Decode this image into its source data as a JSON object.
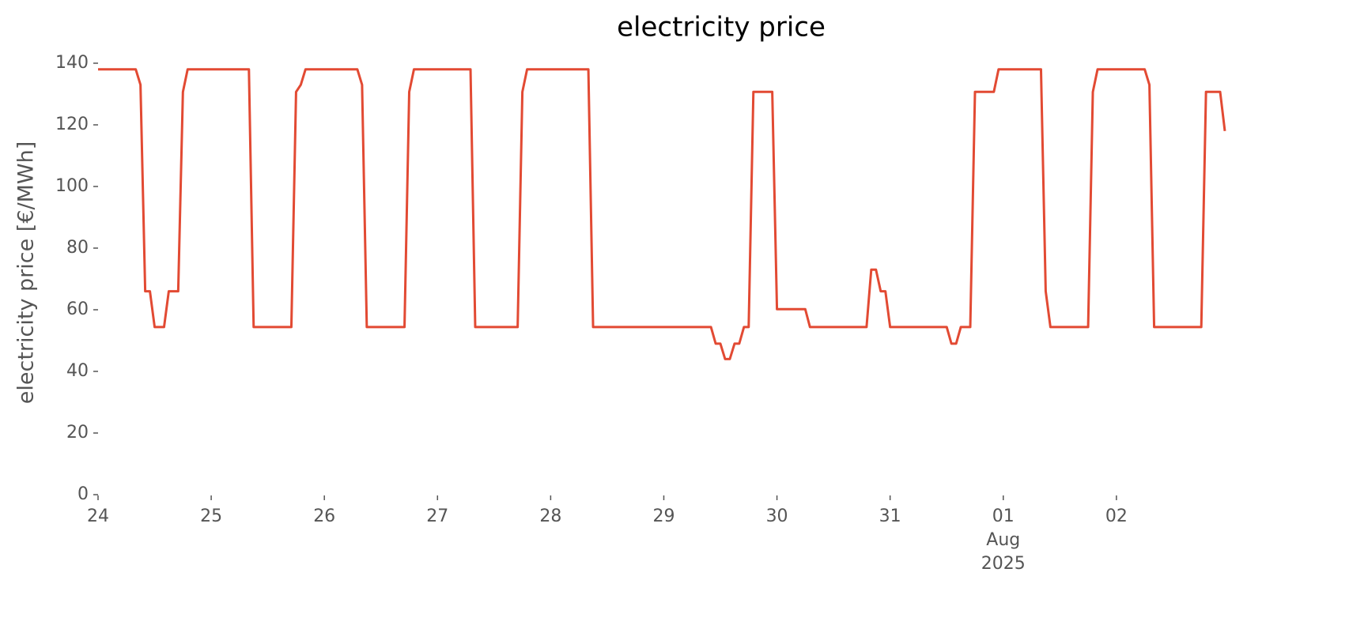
{
  "chart_data": {
    "type": "line",
    "title": "electricity price",
    "ylabel": "electricity price [€/MWh]",
    "x": [
      "2025-07-24T00:00",
      "2025-07-24T08:00",
      "2025-07-24T09:00",
      "2025-07-24T10:00",
      "2025-07-24T11:00",
      "2025-07-24T12:00",
      "2025-07-24T14:00",
      "2025-07-24T15:00",
      "2025-07-24T17:00",
      "2025-07-24T18:00",
      "2025-07-24T19:00",
      "2025-07-25T08:00",
      "2025-07-25T09:00",
      "2025-07-25T17:00",
      "2025-07-25T18:00",
      "2025-07-25T19:00",
      "2025-07-25T20:00",
      "2025-07-26T07:00",
      "2025-07-26T08:00",
      "2025-07-26T09:00",
      "2025-07-26T17:00",
      "2025-07-26T18:00",
      "2025-07-26T19:00",
      "2025-07-27T07:00",
      "2025-07-27T08:00",
      "2025-07-27T17:00",
      "2025-07-27T18:00",
      "2025-07-27T19:00",
      "2025-07-28T08:00",
      "2025-07-28T09:00",
      "2025-07-29T10:00",
      "2025-07-29T11:00",
      "2025-07-29T12:00",
      "2025-07-29T13:00",
      "2025-07-29T14:00",
      "2025-07-29T15:00",
      "2025-07-29T16:00",
      "2025-07-29T17:00",
      "2025-07-29T18:00",
      "2025-07-29T19:00",
      "2025-07-29T23:00",
      "2025-07-30T00:00",
      "2025-07-30T06:00",
      "2025-07-30T07:00",
      "2025-07-30T19:00",
      "2025-07-30T20:00",
      "2025-07-30T21:00",
      "2025-07-30T22:00",
      "2025-07-30T23:00",
      "2025-07-31T00:00",
      "2025-07-31T12:00",
      "2025-07-31T13:00",
      "2025-07-31T14:00",
      "2025-07-31T15:00",
      "2025-07-31T17:00",
      "2025-07-31T18:00",
      "2025-07-31T22:00",
      "2025-07-31T23:00",
      "2025-08-01T08:00",
      "2025-08-01T09:00",
      "2025-08-01T10:00",
      "2025-08-01T18:00",
      "2025-08-01T19:00",
      "2025-08-01T20:00",
      "2025-08-02T06:00",
      "2025-08-02T07:00",
      "2025-08-02T08:00",
      "2025-08-02T18:00",
      "2025-08-02T19:00",
      "2025-08-02T22:00",
      "2025-08-02T23:00"
    ],
    "series": [
      {
        "name": "electricity price",
        "color": "#e24a33",
        "values": [
          138,
          138,
          133,
          66,
          66,
          54.4,
          54.4,
          66,
          66,
          130.7,
          138,
          138,
          54.4,
          54.4,
          130.7,
          133,
          138,
          138,
          133,
          54.4,
          54.4,
          130.7,
          138,
          138,
          54.4,
          54.4,
          130.7,
          138,
          138,
          54.4,
          54.4,
          49,
          49,
          44,
          44,
          49,
          49,
          54.4,
          54.4,
          130.7,
          130.7,
          60.2,
          60.2,
          54.4,
          54.4,
          73,
          73,
          66,
          66,
          54.4,
          54.4,
          49,
          49,
          54.4,
          54.4,
          130.7,
          130.7,
          138,
          138,
          66,
          54.4,
          54.4,
          130.7,
          138,
          138,
          133,
          54.4,
          54.4,
          130.7,
          130.7,
          118
        ]
      }
    ],
    "xlim": [
      "2025-07-24T00:00",
      "2025-08-02T23:00"
    ],
    "xticks": [
      {
        "value": "2025-07-24T00:00",
        "label": "24"
      },
      {
        "value": "2025-07-25T00:00",
        "label": "25"
      },
      {
        "value": "2025-07-26T00:00",
        "label": "26"
      },
      {
        "value": "2025-07-27T00:00",
        "label": "27"
      },
      {
        "value": "2025-07-28T00:00",
        "label": "28"
      },
      {
        "value": "2025-07-29T00:00",
        "label": "29"
      },
      {
        "value": "2025-07-30T00:00",
        "label": "30"
      },
      {
        "value": "2025-07-31T00:00",
        "label": "31"
      },
      {
        "value": "2025-08-01T00:00",
        "label": "01\nAug\n2025"
      },
      {
        "value": "2025-08-02T00:00",
        "label": "02"
      }
    ],
    "ylim": [
      0,
      140
    ],
    "yticks": [
      0,
      20,
      40,
      60,
      80,
      100,
      120,
      140
    ],
    "grid": false
  }
}
